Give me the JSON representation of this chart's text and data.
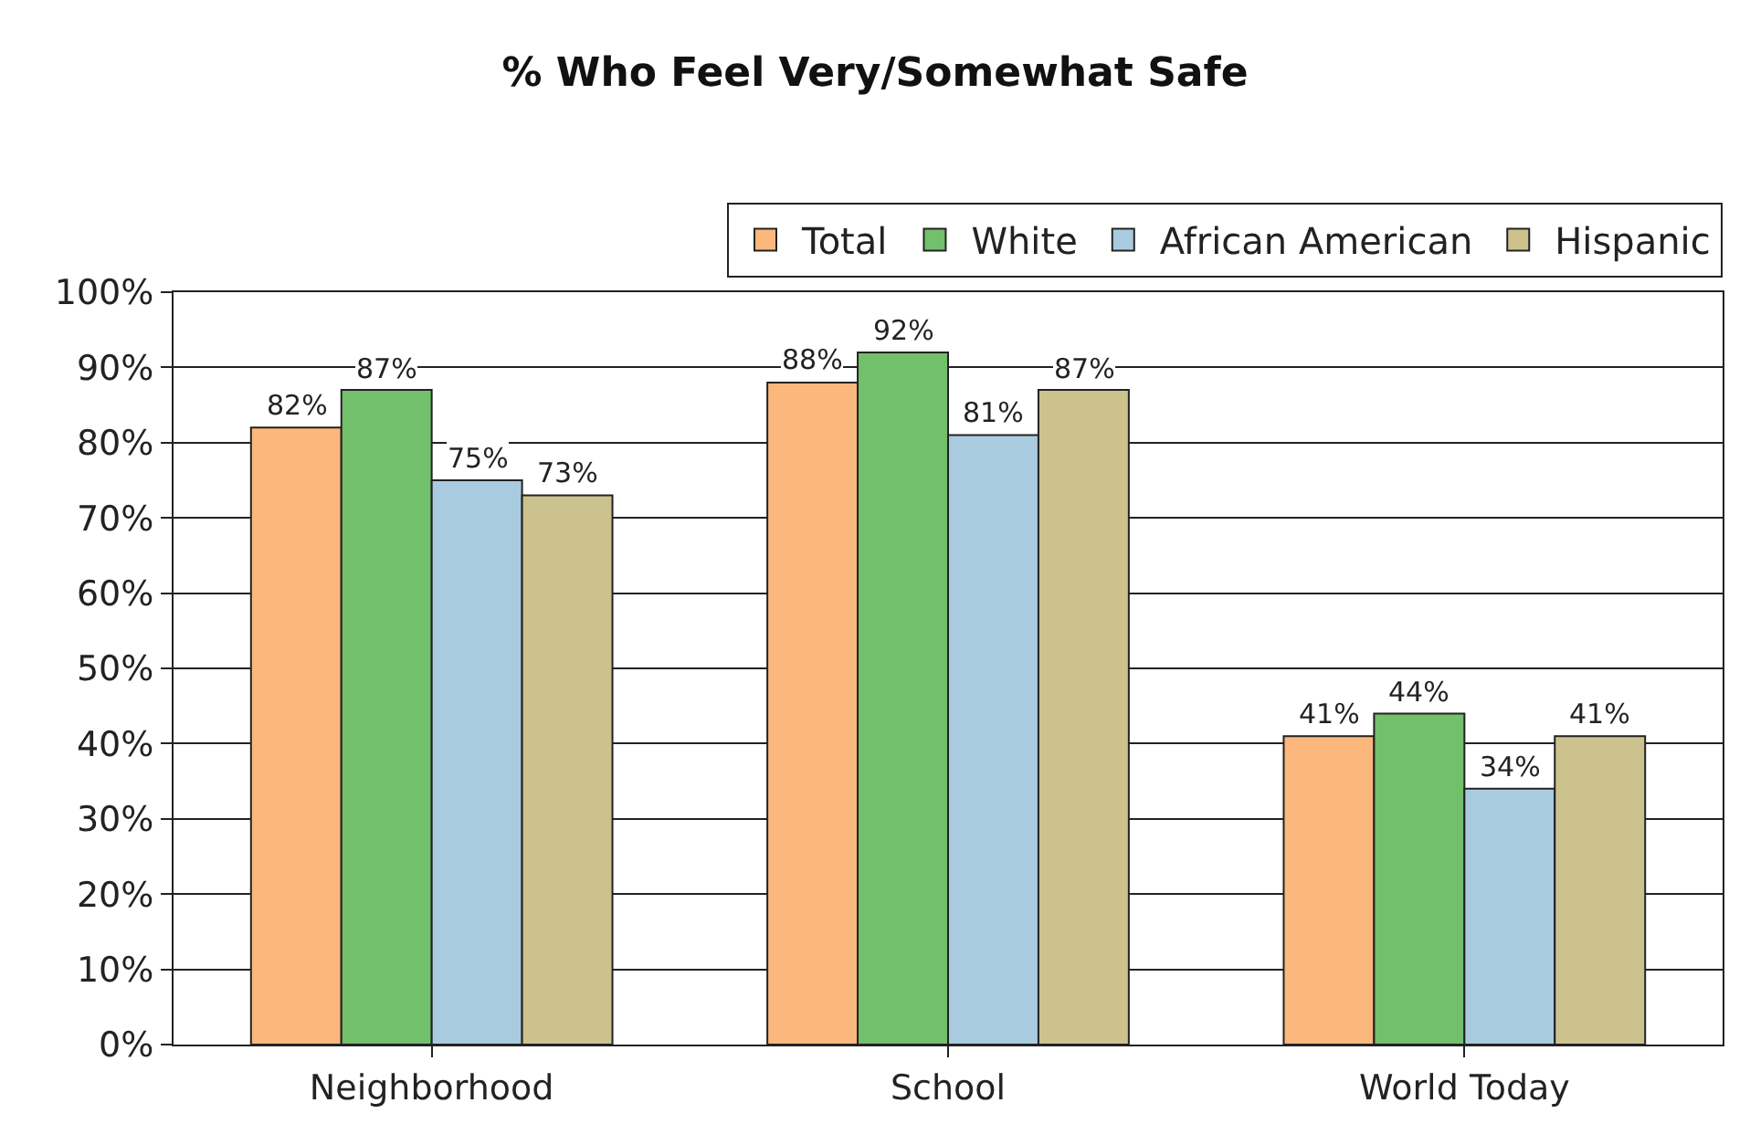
{
  "chart_data": {
    "type": "bar",
    "title": "% Who Feel Very/Somewhat Safe",
    "categories": [
      "Neighborhood",
      "School",
      "World Today"
    ],
    "series": [
      {
        "name": "Total",
        "color": "#fcb77c",
        "values": [
          82,
          88,
          41
        ],
        "value_labels": [
          "82%",
          "88%",
          "41%"
        ]
      },
      {
        "name": "White",
        "color": "#72bf6c",
        "values": [
          87,
          92,
          44
        ],
        "value_labels": [
          "87%",
          "92%",
          "44%"
        ]
      },
      {
        "name": "African American",
        "color": "#a8cbe0",
        "values": [
          75,
          81,
          34
        ],
        "value_labels": [
          "75%",
          "81%",
          "34%"
        ]
      },
      {
        "name": "Hispanic",
        "color": "#cbc28e",
        "values": [
          73,
          87,
          41
        ],
        "value_labels": [
          "73%",
          "87%",
          "41%"
        ]
      }
    ],
    "ylim": [
      0,
      100
    ],
    "yticks": [
      {
        "value": 0,
        "label": "0%"
      },
      {
        "value": 10,
        "label": "10%"
      },
      {
        "value": 20,
        "label": "20%"
      },
      {
        "value": 30,
        "label": "30%"
      },
      {
        "value": 40,
        "label": "40%"
      },
      {
        "value": 50,
        "label": "50%"
      },
      {
        "value": 60,
        "label": "60%"
      },
      {
        "value": 70,
        "label": "70%"
      },
      {
        "value": 80,
        "label": "80%"
      },
      {
        "value": 90,
        "label": "90%"
      },
      {
        "value": 100,
        "label": "100%"
      }
    ],
    "grid": "y",
    "legend": "top right"
  }
}
